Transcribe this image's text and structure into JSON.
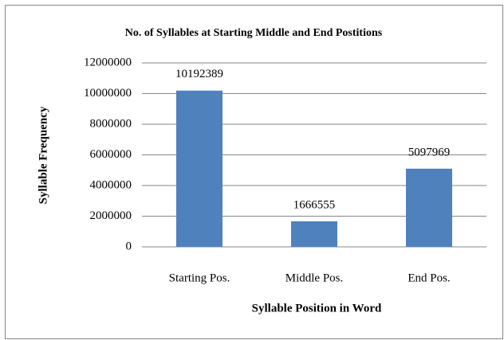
{
  "chart_data": {
    "type": "bar",
    "title": "No. of Syllables at Starting Middle and End Postitions",
    "x_label": "Syllable Position in Word",
    "y_label": "Syllable Frequency",
    "categories": [
      "Starting Pos.",
      "Middle Pos.",
      "End Pos."
    ],
    "values": [
      10192389,
      1666555,
      5097969
    ],
    "color": "#4f81bd",
    "ylim": [
      0,
      12000000
    ],
    "yticks": [
      0,
      2000000,
      4000000,
      6000000,
      8000000,
      10000000,
      12000000
    ],
    "grid": true
  }
}
